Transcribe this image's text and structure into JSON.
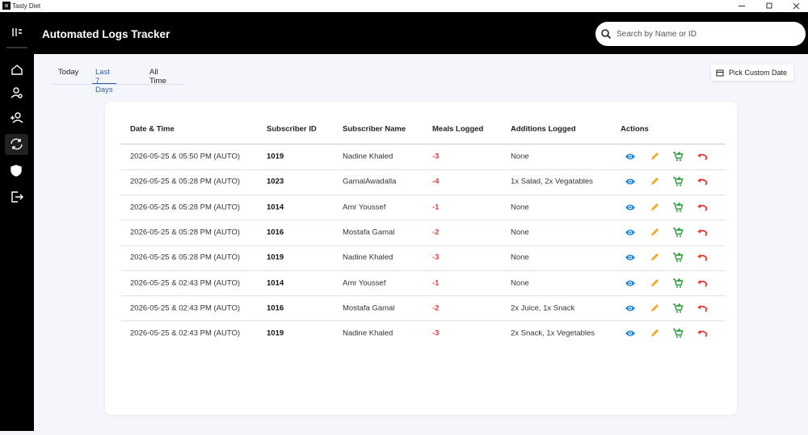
{
  "window": {
    "title": "Tasty Diet"
  },
  "header": {
    "title": "Automated Logs Tracker",
    "search_placeholder": "Search by Name or ID"
  },
  "tabs": {
    "items": [
      "Today",
      "Last 7 Days",
      "All Time"
    ],
    "active": 1
  },
  "custom_date_button": "Pick Custom Date",
  "table": {
    "columns": [
      "Date & Time",
      "Subscriber ID",
      "Subscriber Name",
      "Meals Logged",
      "Additions Logged",
      "Actions"
    ],
    "rows": [
      [
        "2026-05-25 & 05:50 PM (AUTO)",
        "1019",
        "Nadine Khaled",
        "-3",
        "None"
      ],
      [
        "2026-05-25 & 05:28 PM (AUTO)",
        "1023",
        "GamalAwadalla",
        "-4",
        "1x Salad, 2x Vegatables"
      ],
      [
        "2026-05-25 & 05:28 PM (AUTO)",
        "1014",
        "Amr Youssef",
        "-1",
        "None"
      ],
      [
        "2026-05-25 & 05:28 PM (AUTO)",
        "1016",
        "Mostafa Gamal",
        "-2",
        "None"
      ],
      [
        "2026-05-25 & 05:28 PM (AUTO)",
        "1019",
        "Nadine Khaled",
        "-3",
        "None"
      ],
      [
        "2026-05-25 & 02:43 PM (AUTO)",
        "1014",
        "Amr Youssef",
        "-1",
        "None"
      ],
      [
        "2026-05-25 & 02:43 PM (AUTO)",
        "1016",
        "Mostafa Gamal",
        "-2",
        "2x Juice, 1x Snack"
      ],
      [
        "2026-05-25 & 02:43 PM (AUTO)",
        "1019",
        "Nadine Khaled",
        "-3",
        "2x Snack, 1x Vegetables"
      ]
    ]
  }
}
